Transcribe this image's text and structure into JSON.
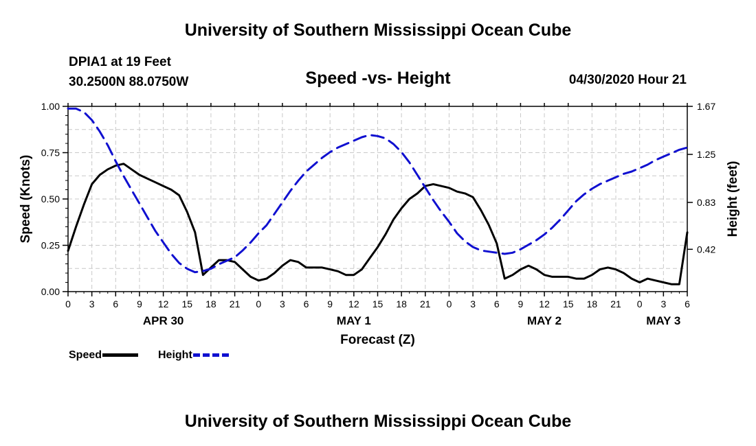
{
  "header": {
    "title": "University of Southern Mississippi Ocean Cube"
  },
  "station": {
    "name": "DPIA1 at 19 Feet",
    "coords": "30.2500N 88.0750W",
    "datetime": "04/30/2020 Hour 21"
  },
  "footer": {
    "title": "University of Southern Mississippi Ocean Cube"
  },
  "colors": {
    "speed": "#000000",
    "height": "#1010d0",
    "grid": "#c8c8c8"
  },
  "chart_data": {
    "type": "line",
    "title": "Speed -vs- Height",
    "xlabel": "Forecast (Z)",
    "ylabel": "Speed (Knots)",
    "y2label": "Height (feet)",
    "x_hours_range": [
      0,
      78
    ],
    "ylim": [
      0,
      1.0
    ],
    "y2lim": [
      0.05,
      1.67
    ],
    "y_ticks": [
      "0.00",
      "0.25",
      "0.50",
      "0.75",
      "1.00"
    ],
    "y2_ticks": [
      {
        "v": 0.42,
        "label": "0.42"
      },
      {
        "v": 0.83,
        "label": "0.83"
      },
      {
        "v": 1.25,
        "label": "1.25"
      },
      {
        "v": 1.67,
        "label": "1.67"
      }
    ],
    "x_ticks": [
      "0",
      "3",
      "6",
      "9",
      "12",
      "15",
      "18",
      "21",
      "0",
      "3",
      "6",
      "9",
      "12",
      "15",
      "18",
      "21",
      "0",
      "3",
      "6",
      "9",
      "12",
      "15",
      "18",
      "21",
      "0",
      "3",
      "6"
    ],
    "date_labels": [
      {
        "hour": 12,
        "label": "APR 30"
      },
      {
        "hour": 36,
        "label": "MAY 1"
      },
      {
        "hour": 60,
        "label": "MAY 2"
      },
      {
        "hour": 75,
        "label": "MAY 3"
      }
    ],
    "series": [
      {
        "name": "Speed",
        "axis": "left",
        "style": "solid",
        "x": [
          0,
          1,
          2,
          3,
          4,
          5,
          6,
          7,
          8,
          9,
          10,
          11,
          12,
          13,
          14,
          15,
          16,
          17,
          18,
          19,
          20,
          21,
          22,
          23,
          24,
          25,
          26,
          27,
          28,
          29,
          30,
          31,
          32,
          33,
          34,
          35,
          36,
          37,
          38,
          39,
          40,
          41,
          42,
          43,
          44,
          45,
          46,
          47,
          48,
          49,
          50,
          51,
          52,
          53,
          54,
          55,
          56,
          57,
          58,
          59,
          60,
          61,
          62,
          63,
          64,
          65,
          66,
          67,
          68,
          69,
          70,
          71,
          72,
          73,
          74,
          75,
          76,
          77,
          78
        ],
        "values": [
          0.22,
          0.35,
          0.47,
          0.58,
          0.63,
          0.66,
          0.68,
          0.69,
          0.66,
          0.63,
          0.61,
          0.59,
          0.57,
          0.55,
          0.52,
          0.43,
          0.32,
          0.09,
          0.13,
          0.17,
          0.17,
          0.16,
          0.12,
          0.08,
          0.06,
          0.07,
          0.1,
          0.14,
          0.17,
          0.16,
          0.13,
          0.13,
          0.13,
          0.12,
          0.11,
          0.09,
          0.09,
          0.12,
          0.18,
          0.24,
          0.31,
          0.39,
          0.45,
          0.5,
          0.53,
          0.57,
          0.58,
          0.57,
          0.56,
          0.54,
          0.53,
          0.51,
          0.44,
          0.36,
          0.26,
          0.07,
          0.09,
          0.12,
          0.14,
          0.12,
          0.09,
          0.08,
          0.08,
          0.08,
          0.07,
          0.07,
          0.09,
          0.12,
          0.13,
          0.12,
          0.1,
          0.07,
          0.05,
          0.07,
          0.06,
          0.05,
          0.04,
          0.04,
          0.32
        ]
      },
      {
        "name": "Height",
        "axis": "right",
        "style": "dashed",
        "x": [
          0,
          1,
          2,
          3,
          4,
          5,
          6,
          7,
          8,
          9,
          10,
          11,
          12,
          13,
          14,
          15,
          16,
          17,
          18,
          19,
          20,
          21,
          22,
          23,
          24,
          25,
          26,
          27,
          28,
          29,
          30,
          31,
          32,
          33,
          34,
          35,
          36,
          37,
          38,
          39,
          40,
          41,
          42,
          43,
          44,
          45,
          46,
          47,
          48,
          49,
          50,
          51,
          52,
          53,
          54,
          55,
          56,
          57,
          58,
          59,
          60,
          61,
          62,
          63,
          64,
          65,
          66,
          67,
          68,
          69,
          70,
          71,
          72,
          73,
          74,
          75,
          76,
          77,
          78
        ],
        "values": [
          1.65,
          1.65,
          1.62,
          1.55,
          1.45,
          1.33,
          1.19,
          1.06,
          0.94,
          0.82,
          0.7,
          0.58,
          0.48,
          0.38,
          0.3,
          0.25,
          0.22,
          0.23,
          0.25,
          0.29,
          0.32,
          0.35,
          0.41,
          0.48,
          0.56,
          0.63,
          0.73,
          0.83,
          0.93,
          1.02,
          1.1,
          1.16,
          1.22,
          1.27,
          1.31,
          1.34,
          1.37,
          1.4,
          1.42,
          1.41,
          1.39,
          1.34,
          1.27,
          1.18,
          1.07,
          0.96,
          0.85,
          0.75,
          0.66,
          0.56,
          0.49,
          0.44,
          0.41,
          0.4,
          0.39,
          0.38,
          0.39,
          0.42,
          0.46,
          0.5,
          0.55,
          0.61,
          0.68,
          0.76,
          0.84,
          0.9,
          0.95,
          0.99,
          1.02,
          1.05,
          1.08,
          1.1,
          1.13,
          1.16,
          1.2,
          1.23,
          1.26,
          1.29,
          1.31
        ]
      }
    ],
    "legend": [
      {
        "name": "Speed",
        "style": "solid"
      },
      {
        "name": "Height",
        "style": "dashed"
      }
    ],
    "grid": true
  }
}
